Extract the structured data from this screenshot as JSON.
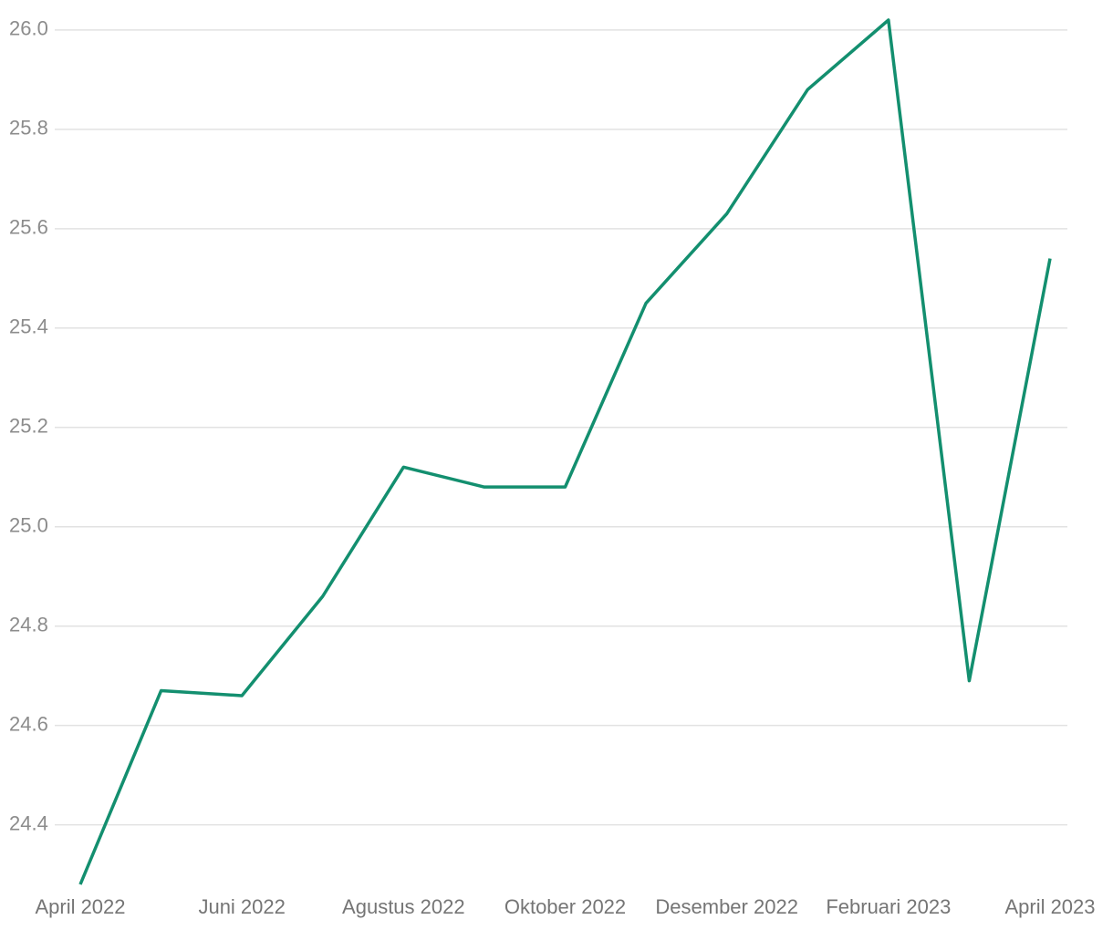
{
  "chart_data": {
    "type": "line",
    "categories": [
      "April 2022",
      null,
      "Juni 2022",
      null,
      "Agustus 2022",
      null,
      "Oktober 2022",
      null,
      "Desember 2022",
      null,
      "Februari 2023",
      null,
      "April 2023"
    ],
    "series": [
      {
        "color": "#138f6f",
        "values": [
          24.28,
          24.67,
          24.66,
          24.86,
          25.12,
          25.08,
          25.08,
          25.45,
          25.63,
          25.88,
          26.02,
          24.69,
          25.54
        ]
      }
    ],
    "ylim": [
      24.28,
      26.02
    ],
    "yticks": [
      24.4,
      24.6,
      24.8,
      {
        "value": 25,
        "label": "25.0"
      },
      25.2,
      25.4,
      25.6,
      25.8,
      {
        "value": 26,
        "label": "26.0"
      }
    ],
    "grid": true
  }
}
